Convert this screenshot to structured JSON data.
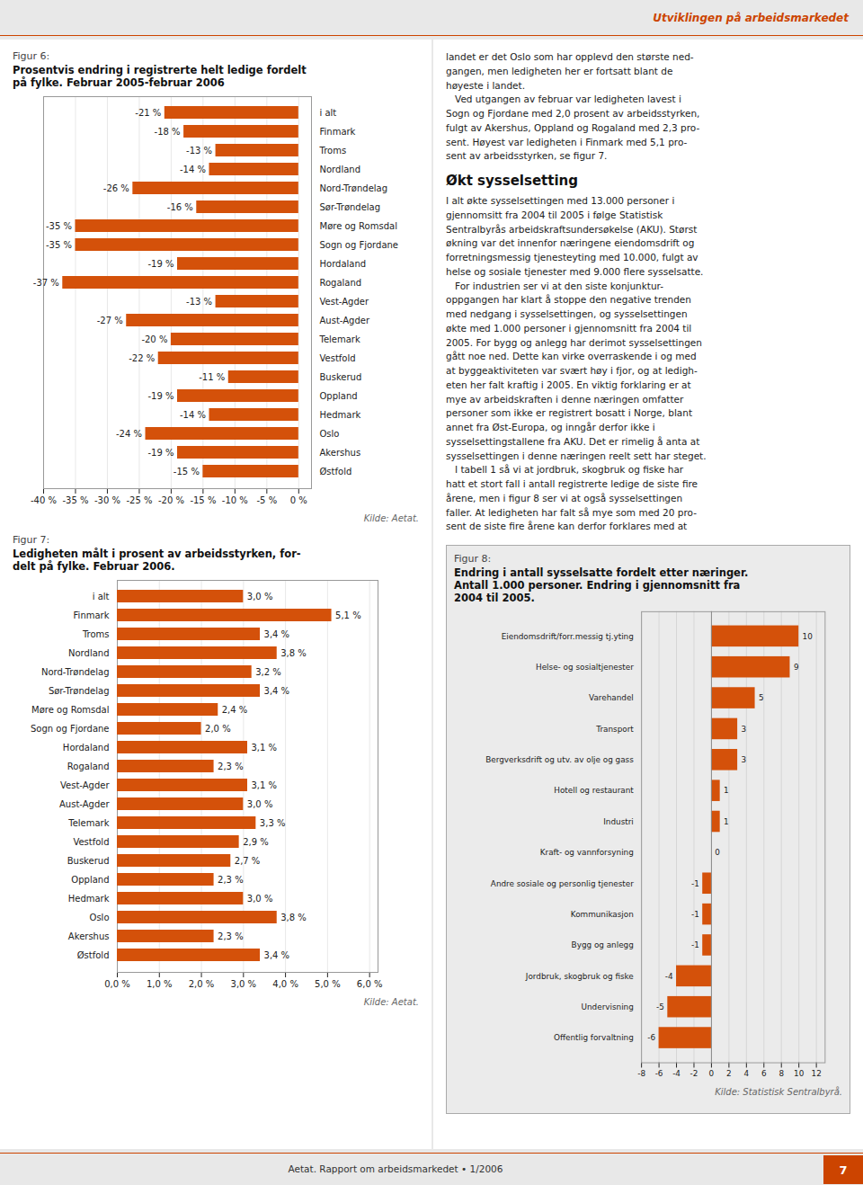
{
  "chart_data": [
    {
      "type": "bar",
      "orientation": "horizontal",
      "subtitle": "Figur 6:",
      "title": "Prosentvis endring i registrerte helt ledige fordelt\npå fylke. Februar 2005-februar 2006",
      "annotations": [
        "Kilde: Aetat."
      ],
      "categories": [
        "i alt",
        "Finmark",
        "Troms",
        "Nordland",
        "Nord-Trøndelag",
        "Sør-Trøndelag",
        "Møre og Romsdal",
        "Sogn og Fjordane",
        "Hordaland",
        "Rogaland",
        "Vest-Agder",
        "Aust-Agder",
        "Telemark",
        "Vestfold",
        "Buskerud",
        "Oppland",
        "Hedmark",
        "Oslo",
        "Akershus",
        "Østfold"
      ],
      "values": [
        -21,
        -18,
        -13,
        -14,
        -26,
        -16,
        -35,
        -35,
        -19,
        -37,
        -13,
        -27,
        -20,
        -22,
        -11,
        -19,
        -14,
        -24,
        -19,
        -15
      ],
      "value_labels": [
        "-21 %",
        "-18 %",
        "-13 %",
        "-14 %",
        "-26 %",
        "-16 %",
        "-35 %",
        "-35 %",
        "-19 %",
        "-37 %",
        "-13 %",
        "-27 %",
        "-20 %",
        "-22 %",
        "-11 %",
        "-19 %",
        "-14 %",
        "-24 %",
        "-19 %",
        "-15 %"
      ],
      "data_labels": true,
      "color": "#d4510a",
      "xlim": [
        -40,
        2
      ],
      "xticks": [
        {
          "value": -40,
          "label": "-40 %"
        },
        {
          "value": -35,
          "label": "-35 %"
        },
        {
          "value": -30,
          "label": "-30 %"
        },
        {
          "value": -25,
          "label": "-25 %"
        },
        {
          "value": -20,
          "label": "-20 %"
        },
        {
          "value": -15,
          "label": "-15 %"
        },
        {
          "value": -10,
          "label": "-10 %"
        },
        {
          "value": -5,
          "label": "-5 %"
        },
        {
          "value": 0,
          "label": "0 %"
        }
      ],
      "grid": true
    },
    {
      "type": "bar",
      "orientation": "horizontal",
      "subtitle": "Figur 7:",
      "title": "Ledigheten målt i prosent av arbeidsstyrken, for-\ndelt på fylke. Februar 2006.",
      "annotations": [
        "Kilde: Aetat."
      ],
      "categories": [
        "i alt",
        "Finmark",
        "Troms",
        "Nordland",
        "Nord-Trøndelag",
        "Sør-Trøndelag",
        "Møre og Romsdal",
        "Sogn og Fjordane",
        "Hordaland",
        "Rogaland",
        "Vest-Agder",
        "Aust-Agder",
        "Telemark",
        "Vestfold",
        "Buskerud",
        "Oppland",
        "Hedmark",
        "Oslo",
        "Akershus",
        "Østfold"
      ],
      "values": [
        3.0,
        5.1,
        3.4,
        3.8,
        3.2,
        3.4,
        2.4,
        2.0,
        3.1,
        2.3,
        3.1,
        3.0,
        3.3,
        2.9,
        2.7,
        2.3,
        3.0,
        3.8,
        2.3,
        3.4
      ],
      "value_labels": [
        "3,0 %",
        "5,1 %",
        "3,4 %",
        "3,8 %",
        "3,2 %",
        "3,4 %",
        "2,4 %",
        "2,0 %",
        "3,1 %",
        "2,3 %",
        "3,1 %",
        "3,0 %",
        "3,3 %",
        "2,9 %",
        "2,7 %",
        "2,3 %",
        "3,0 %",
        "3,8 %",
        "2,3 %",
        "3,4 %"
      ],
      "data_labels": true,
      "color": "#d4510a",
      "xlim": [
        0,
        6.2
      ],
      "xticks": [
        {
          "value": 0,
          "label": "0,0 %"
        },
        {
          "value": 1,
          "label": "1,0 %"
        },
        {
          "value": 2,
          "label": "2,0 %"
        },
        {
          "value": 3,
          "label": "3,0 %"
        },
        {
          "value": 4,
          "label": "4,0 %"
        },
        {
          "value": 5,
          "label": "5,0 %"
        },
        {
          "value": 6,
          "label": "6,0 %"
        }
      ],
      "grid": true
    },
    {
      "type": "bar",
      "orientation": "horizontal",
      "subtitle": "Figur 8:",
      "title": "Endring i antall sysselsatte fordelt etter næringer.\nAntall 1.000 personer. Endring i gjennomsnitt fra\n2004 til 2005.",
      "annotations": [
        "Kilde: Statistisk Sentralbyrå."
      ],
      "categories": [
        "Eiendomsdrift/forr.messig tj.yting",
        "Helse- og sosialtjenester",
        "Varehandel",
        "Transport",
        "Bergverksdrift og utv. av olje og gass",
        "Hotell og restaurant",
        "Industri",
        "Kraft- og vannforsyning",
        "Andre sosiale og personlig tjenester",
        "Kommunikasjon",
        "Bygg og anlegg",
        "Jordbruk, skogbruk og fiske",
        "Undervisning",
        "Offentlig forvaltning"
      ],
      "values": [
        10,
        9,
        5,
        3,
        3,
        1,
        1,
        0,
        -1,
        -1,
        -1,
        -4,
        -5,
        -6
      ],
      "data_labels": true,
      "color": "#d4510a",
      "xlim": [
        -8,
        13
      ],
      "xticks": [
        -8,
        -6,
        -4,
        -2,
        0,
        2,
        4,
        6,
        8,
        10,
        12
      ],
      "grid": true
    }
  ],
  "annotations": [
    "Utviklingen på arbeidsmarkedet",
    "Aetat.  Rapport om arbeidsmarkedet • 1/2006",
    "7",
    "landet er det Oslo som har opplevd den største ned-\ngangen, men ledigheten her er fortsatt blant de\nhøyeste i landet.\n   Ved utgangen av februar var ledigheten lavest i\nSogn og Fjordane med 2,0 prosent av arbeidsstyrken,\nfulgt av Akershus, Oppland og Rogaland med 2,3 pro-\nsent. Høyest var ledigheten i Finmark med 5,1 pro-\nsent av arbeidsstyrken, se figur 7.",
    "Økt sysselsetting",
    "I alt økte sysselsettingen med 13.000 personer i\ngjennomsitt fra 2004 til 2005 i følge Statistisk\nSentralbyrås arbeidskraftsundersøkelse (AKU). Størst\nøkning var det innenfor næringene eiendomsdrift og\nforretningsmessig tjenesteyting med 10.000, fulgt av\nhelse og sosiale tjenester med 9.000 flere sysselsatte.\n   For industrien ser vi at den siste konjunktur-\noppgangen har klart å stoppe den negative trenden\nmed nedgang i sysselsettingen, og sysselsettingen\nøkte med 1.000 personer i gjennomsnitt fra 2004 til\n2005. For bygg og anlegg har derimot sysselsettingen\ngått noe ned. Dette kan virke overraskende i og med\nat byggeaktiviteten var svært høy i fjor, og at ledigh-\neten her falt kraftig i 2005. En viktig forklaring er at\nmye av arbeidskraften i denne næringen omfatter\npersoner som ikke er registrert bosatt i Norge, blant\nannet fra Øst-Europa, og inngår derfor ikke i\nsysselsettingstallene fra AKU. Det er rimelig å anta at\nsysselsettingen i denne næringen reelt sett har steget.\n   I tabell 1 så vi at jordbruk, skogbruk og fiske har\nhatt et stort fall i antall registrerte ledige de siste fire\nårene, men i figur 8 ser vi at også sysselsettingen\nfaller. At ledigheten har falt så mye som med 20 pro-\nsent de siste fire årene kan derfor forklares med at"
  ]
}
